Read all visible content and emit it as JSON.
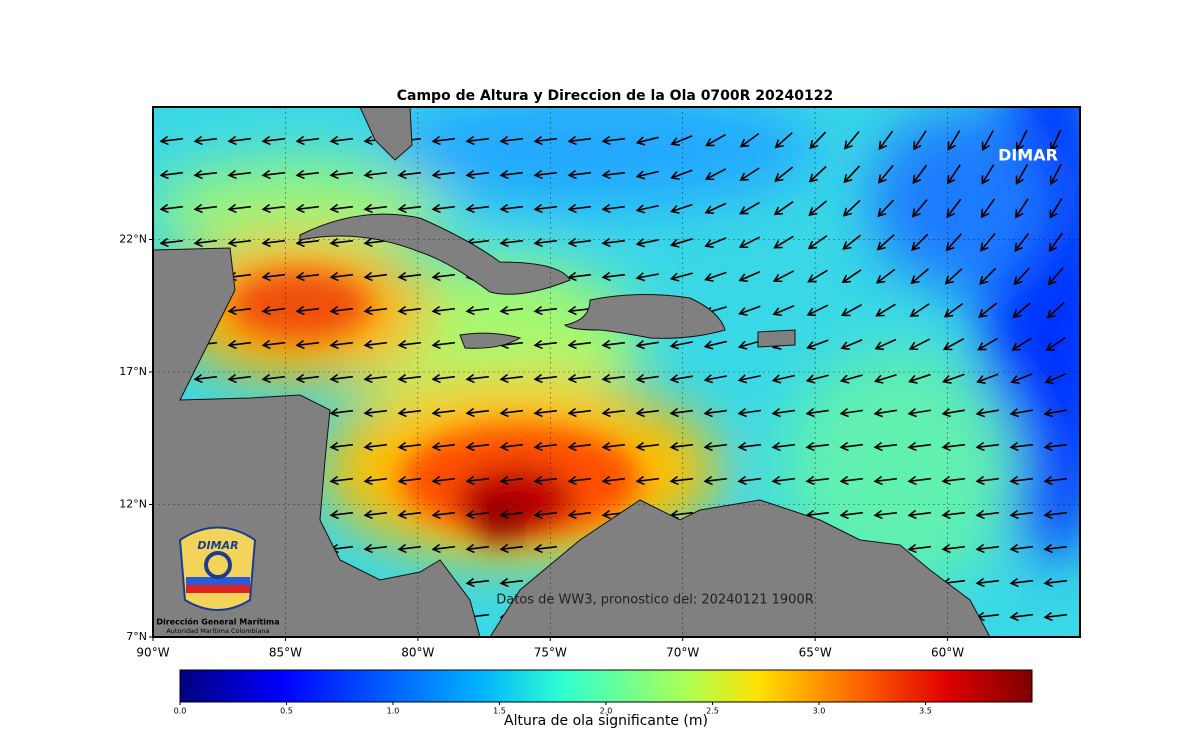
{
  "map": {
    "title": "Campo de Altura y Direccion de la Ola 0700R 20240122",
    "xlim": [
      -90,
      -55
    ],
    "ylim": [
      7,
      27
    ],
    "xticks": [
      {
        "value": -90,
        "label": "90°W"
      },
      {
        "value": -85,
        "label": "85°W"
      },
      {
        "value": -80,
        "label": "80°W"
      },
      {
        "value": -75,
        "label": "75°W"
      },
      {
        "value": -70,
        "label": "70°W"
      },
      {
        "value": -65,
        "label": "65°W"
      },
      {
        "value": -60,
        "label": "60°W"
      }
    ],
    "yticks": [
      {
        "value": 7,
        "label": "7°N"
      },
      {
        "value": 12,
        "label": "12°N"
      },
      {
        "value": 17,
        "label": "17°N"
      },
      {
        "value": 22,
        "label": "22°N"
      }
    ],
    "watermark": "DIMAR",
    "annotation": "Datos de WW3, pronostico del: 20240121 1900R",
    "logo": {
      "name": "DIMAR",
      "org": "Dirección General Marítima",
      "subtitle": "Autoridad Marítima Colombiana"
    },
    "colorbar": {
      "label": "Altura de ola significante (m)",
      "lim": [
        0,
        4
      ],
      "ticks": [
        {
          "value": 0,
          "label": "0.0"
        },
        {
          "value": 0.5,
          "label": "0.5"
        },
        {
          "value": 1,
          "label": "1.0"
        },
        {
          "value": 1.5,
          "label": "1.5"
        },
        {
          "value": 2,
          "label": "2.0"
        },
        {
          "value": 2.5,
          "label": "2.5"
        },
        {
          "value": 3,
          "label": "3.0"
        },
        {
          "value": 3.5,
          "label": "3.5"
        }
      ]
    }
  }
}
